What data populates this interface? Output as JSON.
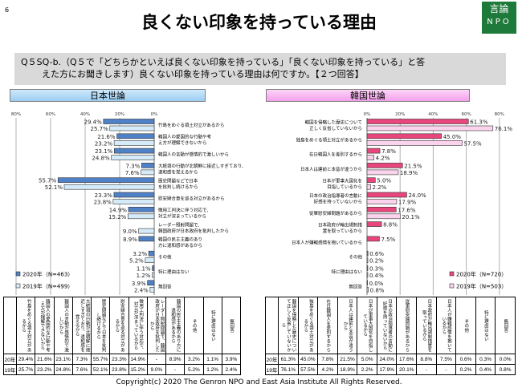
{
  "page_number": "6",
  "title": "良くない印象を持っている理由",
  "logo": {
    "line1": "言論",
    "line2": "NPO"
  },
  "question": {
    "line1": "Q５SQ-b.（Q５で「どちらかといえば良くない印象を持っている」「良くない印象を持っている」と答",
    "line2": "えた方にお聞きします）良くない印象を持っている理由は何ですか。【２つ回答】"
  },
  "footer": "Copyright(c) 2020 The Genron NPO and East Asia Institute All Rights Reserved.",
  "chart_data": [
    {
      "type": "bar",
      "orientation": "horizontal",
      "title": "日本世論",
      "xlim": [
        0,
        80
      ],
      "ticks": [
        "80%",
        "60%",
        "40%",
        "20%",
        "0%"
      ],
      "grid": true,
      "legend": "bottom-left",
      "colors": {
        "2020": "#4f81c7",
        "2019": "#d5ebfa"
      },
      "categories": [
        "竹島をめぐる領土対立があるから",
        "韓国人の愛国的な行動や考え方が理解できないから",
        "韓国人の言動が感情的で激しいから",
        "大統領の行動が北朝鮮に接近しすぎており、違和感を覚えるから",
        "歴史問題などで日本を批判し続けるから",
        "慰安婦合意を巡る対立があるから",
        "徴用工判決に伴う対応で、対立が深まっているから",
        "レーダー照射問題で、韓国政府が日本政府を批判したから",
        "韓国の民主主義のあり方に違和感があるから",
        "その他",
        "特に理由はない",
        "無回答"
      ],
      "series": [
        {
          "name": "2020年（N=463）",
          "values": [
            29.4,
            21.6,
            23.1,
            7.3,
            55.7,
            23.3,
            14.9,
            null,
            8.9,
            3.2,
            1.1,
            3.9
          ]
        },
        {
          "name": "2019年（N=499）",
          "values": [
            25.7,
            23.2,
            24.8,
            7.6,
            52.1,
            23.8,
            15.2,
            9.0,
            null,
            5.2,
            1.2,
            2.4
          ]
        }
      ],
      "table": {
        "rows": [
          {
            "label": "20年",
            "cells": [
              "29.4%",
              "21.6%",
              "23.1%",
              "7.3%",
              "55.7%",
              "23.3%",
              "14.9%",
              "-",
              "8.9%",
              "3.2%",
              "1.1%",
              "3.9%"
            ]
          },
          {
            "label": "19年",
            "cells": [
              "25.7%",
              "23.2%",
              "24.8%",
              "7.6%",
              "52.1%",
              "23.8%",
              "15.2%",
              "9.0%",
              "-",
              "5.2%",
              "1.2%",
              "2.4%"
            ]
          }
        ]
      }
    },
    {
      "type": "bar",
      "orientation": "horizontal",
      "title": "韓国世論",
      "xlim": [
        0,
        80
      ],
      "ticks": [
        "0%",
        "20%",
        "40%",
        "60%",
        "80%"
      ],
      "grid": true,
      "legend": "bottom-right",
      "colors": {
        "2020": "#e8467c",
        "2019": "#fbd3ec"
      },
      "categories": [
        "韓国を侵略した歴史について正しく反省していないから",
        "独島をめぐる領土対立があるから",
        "在日韓国人を差別するから",
        "日本人は建前と本音が違うから",
        "日本が軍事大国化を目指しているから",
        "日本の政治指導者の言動に好感を持っていないから",
        "従軍慰安婦問題があるから",
        "日本政府が輸出規制措置を取っているから",
        "日本人が嫌韓感情を抱いているから",
        "その他",
        "特に理由はない",
        "無回答"
      ],
      "series": [
        {
          "name": "2020年（N=720）",
          "values": [
            61.3,
            45.0,
            7.8,
            21.5,
            5.0,
            24.0,
            17.6,
            8.8,
            7.5,
            0.6,
            0.3,
            0.0
          ]
        },
        {
          "name": "2019年（N=503）",
          "values": [
            76.1,
            57.5,
            4.2,
            18.9,
            2.2,
            17.9,
            20.1,
            null,
            null,
            0.2,
            0.4,
            0.8
          ]
        }
      ],
      "table": {
        "rows": [
          {
            "label": "20年",
            "cells": [
              "61.3%",
              "45.0%",
              "7.8%",
              "21.5%",
              "5.0%",
              "24.0%",
              "17.6%",
              "8.8%",
              "7.5%",
              "0.6%",
              "0.3%",
              "0.0%"
            ]
          },
          {
            "label": "19年",
            "cells": [
              "76.1%",
              "57.5%",
              "4.2%",
              "18.9%",
              "2.2%",
              "17.9%",
              "20.1%",
              "-",
              "-",
              "0.2%",
              "0.4%",
              "0.8%"
            ]
          }
        ]
      }
    }
  ]
}
